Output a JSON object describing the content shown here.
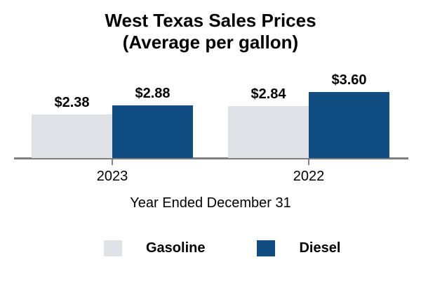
{
  "title": {
    "line1": "West Texas Sales Prices",
    "line2": "(Average per gallon)"
  },
  "chart_data": {
    "type": "bar",
    "title": "West Texas Sales Prices (Average per gallon)",
    "categories": [
      "2023",
      "2022"
    ],
    "series": [
      {
        "name": "Gasoline",
        "color": "#E0E2E7",
        "values": [
          2.38,
          2.84
        ],
        "value_labels": [
          "$2.38",
          "$2.84"
        ]
      },
      {
        "name": "Diesel",
        "color": "#0F4D82",
        "values": [
          2.88,
          3.6
        ],
        "value_labels": [
          "$2.88",
          "$3.60"
        ]
      }
    ],
    "xlabel": "Year Ended December 31",
    "ylabel": "",
    "ylim": [
      0,
      4
    ],
    "grid": false,
    "legend_position": "bottom",
    "axis_color": "#7F7F7F",
    "value_label_color": "#000000"
  }
}
